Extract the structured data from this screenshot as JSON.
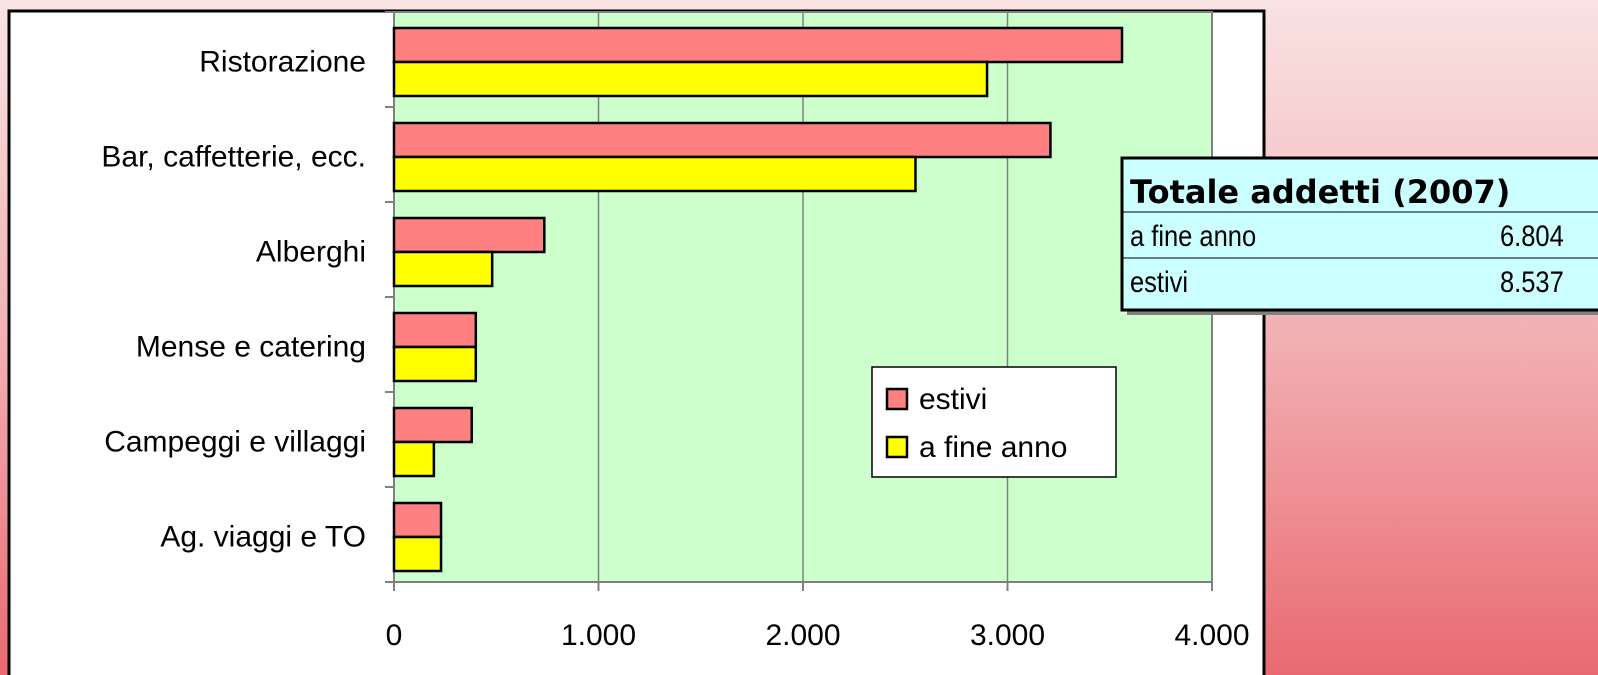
{
  "chart_data": {
    "type": "bar",
    "orientation": "horizontal",
    "categories": [
      "Ristorazione",
      "Bar, caffetterie, ecc.",
      "Alberghi",
      "Mense e catering",
      "Campeggi e villaggi",
      "Ag. viaggi e TO"
    ],
    "series": [
      {
        "name": "estivi",
        "color": "#ff8080",
        "values": [
          3560,
          3210,
          735,
          400,
          380,
          230
        ]
      },
      {
        "name": "a fine anno",
        "color": "#ffff00",
        "values": [
          2900,
          2550,
          480,
          400,
          195,
          230
        ]
      }
    ],
    "xlim": [
      0,
      4000
    ],
    "xticks": [
      0,
      {
        "value": 1000,
        "label": "1.000"
      },
      {
        "value": 2000,
        "label": "2.000"
      },
      {
        "value": 3000,
        "label": "3.000"
      },
      {
        "value": 4000,
        "label": "4.000"
      }
    ],
    "grid": true,
    "legend": "center right",
    "summary": {
      "title": "Totale addetti (2007)",
      "rows": [
        [
          "a fine anno",
          "6.804"
        ],
        [
          "estivi",
          "8.537"
        ]
      ]
    }
  }
}
